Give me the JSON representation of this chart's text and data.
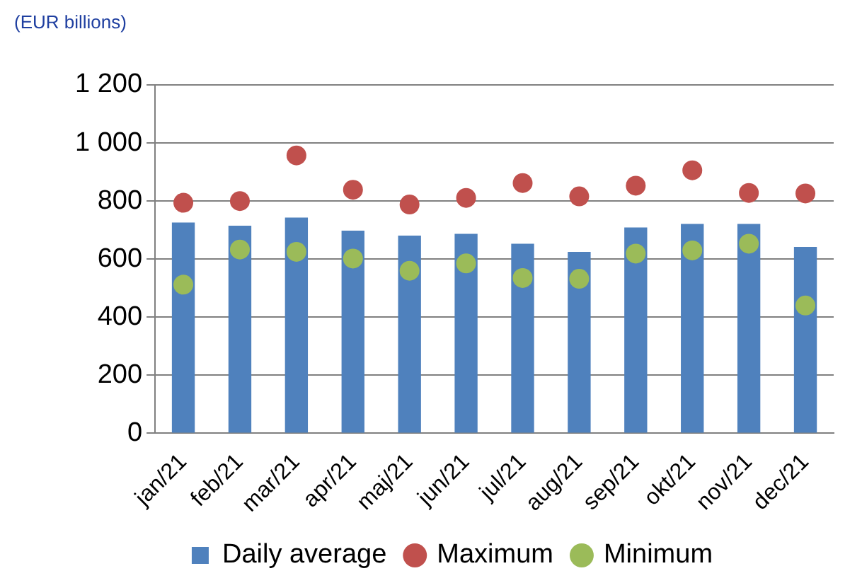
{
  "chart_data": {
    "type": "bar",
    "ylabel": "(EUR billions)",
    "categories": [
      "jan/21",
      "feb/21",
      "mar/21",
      "apr/21",
      "maj/21",
      "jun/21",
      "jul/21",
      "aug/21",
      "sep/21",
      "okt/21",
      "nov/21",
      "dec/21"
    ],
    "series": [
      {
        "name": "Daily average",
        "color": "#4f81bd",
        "values": [
          726,
          715,
          743,
          698,
          681,
          687,
          653,
          625,
          709,
          721,
          721,
          642
        ]
      },
      {
        "name": "Maximum",
        "type": "scatter",
        "color": "#c0504d",
        "x": [
          "jan/21",
          "feb/21",
          "mar/21",
          "apr/21",
          "maj/21",
          "jun/21",
          "jul/21",
          "aug/21",
          "sep/21",
          "okt/21",
          "nov/21",
          "dec/21"
        ],
        "values": [
          794,
          800,
          957,
          839,
          788,
          811,
          862,
          816,
          853,
          906,
          828,
          826
        ]
      },
      {
        "name": "Minimum",
        "type": "scatter",
        "color": "#9bbb59",
        "x": [
          "jan/21",
          "feb/21",
          "mar/21",
          "apr/21",
          "maj/21",
          "jun/21",
          "jul/21",
          "aug/21",
          "sep/21",
          "okt/21",
          "nov/21",
          "dec/21"
        ],
        "values": [
          512,
          633,
          625,
          602,
          560,
          585,
          535,
          532,
          619,
          630,
          653,
          440
        ]
      }
    ],
    "ylim": [
      0,
      1200
    ],
    "yticks": [
      0,
      200,
      400,
      600,
      800,
      {
        "value": 1000,
        "label": "1 000"
      },
      {
        "value": 1200,
        "label": "1 200"
      }
    ],
    "grid": "y",
    "legend": "bottom",
    "marker": "circle"
  }
}
